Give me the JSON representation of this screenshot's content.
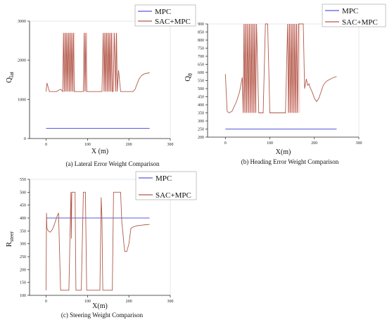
{
  "colors": {
    "mpc": "#5a5adc",
    "sac": "#b05a4a",
    "sac_fill": "#e24848",
    "axis": "#222222",
    "guide": "#c8d0e0"
  },
  "chart_data": [
    {
      "type": "line",
      "caption": "(a) Lateral Error Weight Comparison",
      "xlabel": "X (m)",
      "ylabel_main": "Q",
      "ylabel_sub": "lat",
      "xlim": [
        -40,
        300
      ],
      "ylim": [
        0,
        3000
      ],
      "xticks": [
        0,
        100,
        200,
        300
      ],
      "yticks": [
        0,
        1000,
        2000,
        3000
      ],
      "legend": [
        "MPC",
        "SAC+MPC"
      ],
      "series": [
        {
          "name": "MPC",
          "x": [
            0,
            250
          ],
          "y": [
            260,
            260
          ]
        },
        {
          "name": "SAC+MPC",
          "x": [
            0,
            2,
            8,
            15,
            25,
            35,
            40,
            42,
            44,
            46,
            48,
            50,
            52,
            54,
            56,
            58,
            60,
            62,
            64,
            66,
            68,
            70,
            75,
            80,
            85,
            90,
            92,
            94,
            96,
            98,
            100,
            105,
            110,
            115,
            120,
            125,
            130,
            135,
            138,
            140,
            142,
            144,
            146,
            148,
            150,
            152,
            154,
            156,
            158,
            160,
            162,
            165,
            168,
            170,
            172,
            175,
            180,
            185,
            190,
            195,
            200,
            205,
            210,
            215,
            220,
            225,
            230,
            235,
            240,
            245,
            250
          ],
          "y": [
            1200,
            1420,
            1200,
            1200,
            1200,
            1260,
            1200,
            2700,
            1200,
            2700,
            1200,
            2700,
            1200,
            2700,
            1200,
            2700,
            1200,
            2700,
            1200,
            2700,
            1200,
            1200,
            1200,
            1200,
            1200,
            1200,
            2700,
            1200,
            2700,
            1200,
            1200,
            1200,
            1200,
            1200,
            1200,
            1200,
            1200,
            1200,
            2700,
            1200,
            2700,
            1200,
            2700,
            1200,
            2700,
            1200,
            2700,
            1200,
            2700,
            1200,
            1200,
            2700,
            1200,
            2700,
            1200,
            1750,
            1200,
            1200,
            1200,
            1200,
            1200,
            1200,
            1200,
            1260,
            1400,
            1530,
            1600,
            1640,
            1660,
            1670,
            1680
          ]
        }
      ],
      "fill_bands": [
        [
          42,
          70
        ],
        [
          92,
          100
        ],
        [
          138,
          165
        ],
        [
          168,
          172
        ]
      ]
    },
    {
      "type": "line",
      "caption": "(b) Heading Error Weight Comparison",
      "xlabel": "X(m)",
      "ylabel_main": "Q",
      "ylabel_sub": "θ",
      "xlim": [
        -40,
        300
      ],
      "ylim": [
        200,
        900
      ],
      "xticks": [
        0,
        100,
        200,
        300
      ],
      "yticks": [
        200,
        250,
        300,
        350,
        400,
        450,
        500,
        550,
        600,
        650,
        700,
        750,
        800,
        850,
        900
      ],
      "legend": [
        "MPC",
        "SAC+MPC"
      ],
      "series": [
        {
          "name": "MPC",
          "x": [
            0,
            250
          ],
          "y": [
            250,
            250
          ]
        },
        {
          "name": "SAC+MPC",
          "x": [
            0,
            2,
            4,
            8,
            15,
            25,
            32,
            38,
            40,
            42,
            44,
            46,
            48,
            50,
            52,
            54,
            56,
            58,
            60,
            62,
            64,
            66,
            68,
            70,
            75,
            80,
            85,
            90,
            95,
            100,
            105,
            110,
            115,
            120,
            125,
            130,
            135,
            140,
            142,
            144,
            146,
            148,
            150,
            152,
            154,
            156,
            158,
            160,
            162,
            165,
            170,
            175,
            178,
            182,
            185,
            188,
            190,
            195,
            200,
            205,
            210,
            215,
            220,
            225,
            230,
            240,
            250
          ],
          "y": [
            590,
            470,
            360,
            350,
            360,
            420,
            480,
            570,
            350,
            900,
            350,
            900,
            350,
            900,
            350,
            900,
            350,
            900,
            350,
            900,
            350,
            900,
            350,
            900,
            350,
            350,
            350,
            900,
            900,
            350,
            350,
            350,
            350,
            350,
            350,
            350,
            350,
            900,
            350,
            900,
            350,
            900,
            350,
            900,
            350,
            900,
            350,
            900,
            350,
            900,
            900,
            900,
            500,
            560,
            520,
            530,
            510,
            480,
            440,
            420,
            440,
            480,
            520,
            540,
            550,
            565,
            575
          ]
        }
      ],
      "fill_bands": [
        [
          40,
          70
        ],
        [
          88,
          97
        ],
        [
          140,
          168
        ]
      ]
    },
    {
      "type": "line",
      "caption": "(c) Steering Weight Comparison",
      "xlabel": "X(m)",
      "ylabel_main": "R",
      "ylabel_sub": "steer",
      "xlim": [
        -40,
        300
      ],
      "ylim": [
        100,
        550
      ],
      "xticks": [
        0,
        100,
        200,
        300
      ],
      "yticks": [
        100,
        150,
        200,
        250,
        300,
        350,
        400,
        450,
        500,
        550
      ],
      "legend": [
        "MPC",
        "SAC+MPC"
      ],
      "series": [
        {
          "name": "MPC",
          "x": [
            0,
            250
          ],
          "y": [
            400,
            400
          ]
        },
        {
          "name": "SAC+MPC",
          "x": [
            0,
            1,
            2,
            5,
            10,
            15,
            20,
            25,
            30,
            35,
            40,
            42,
            45,
            50,
            55,
            60,
            61,
            62,
            63,
            65,
            70,
            72,
            75,
            80,
            85,
            90,
            92,
            95,
            98,
            100,
            105,
            110,
            115,
            120,
            125,
            130,
            133,
            135,
            137,
            140,
            145,
            150,
            155,
            160,
            163,
            165,
            170,
            175,
            180,
            183,
            185,
            188,
            190,
            195,
            200,
            205,
            210,
            220,
            230,
            240,
            250
          ],
          "y": [
            120,
            420,
            360,
            350,
            345,
            355,
            375,
            400,
            420,
            120,
            120,
            120,
            120,
            120,
            120,
            500,
            320,
            500,
            500,
            500,
            500,
            120,
            120,
            120,
            120,
            500,
            500,
            500,
            120,
            120,
            120,
            120,
            120,
            120,
            120,
            120,
            480,
            400,
            120,
            120,
            120,
            120,
            120,
            120,
            500,
            500,
            500,
            500,
            500,
            380,
            350,
            300,
            270,
            270,
            300,
            360,
            365,
            370,
            372,
            374,
            375
          ]
        }
      ],
      "fill_bands": []
    }
  ]
}
